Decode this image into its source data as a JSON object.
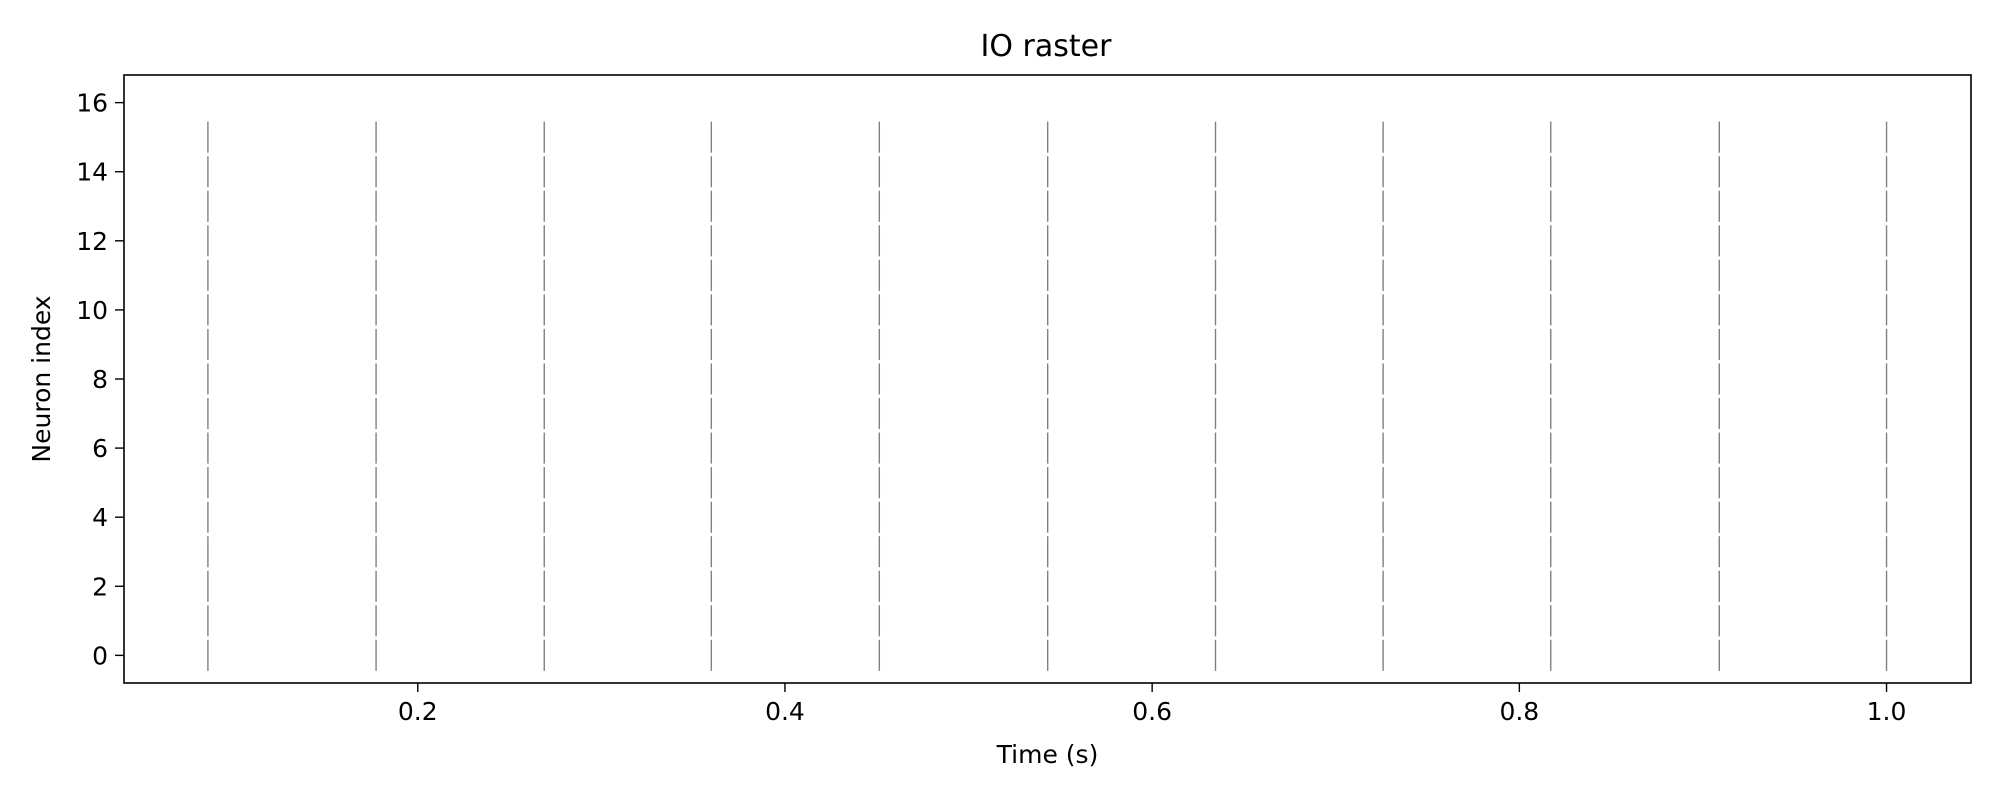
{
  "chart_data": {
    "type": "scatter",
    "marker": "vertical-line",
    "title": "IO raster",
    "xlabel": "Time (s)",
    "ylabel": "Neuron index",
    "xlim": [
      0.04,
      1.046
    ],
    "ylim": [
      -0.8,
      16.8
    ],
    "xticks": [
      0.2,
      0.4,
      0.6,
      0.8,
      1.0
    ],
    "xtick_labels": [
      "0.2",
      "0.4",
      "0.6",
      "0.8",
      "1.0"
    ],
    "yticks": [
      0,
      2,
      4,
      6,
      8,
      10,
      12,
      14,
      16
    ],
    "ytick_labels": [
      "0",
      "2",
      "4",
      "6",
      "8",
      "10",
      "12",
      "14",
      "16"
    ],
    "grid": false,
    "spike_color": "#808080",
    "neurons": [
      0,
      1,
      2,
      3,
      4,
      5,
      6,
      7,
      8,
      9,
      10,
      11,
      12,
      13,
      14,
      15
    ],
    "spike_times": [
      0.0857,
      0.1773,
      0.2689,
      0.3599,
      0.4514,
      0.5431,
      0.6345,
      0.7258,
      0.8171,
      0.9089,
      1.0
    ]
  }
}
